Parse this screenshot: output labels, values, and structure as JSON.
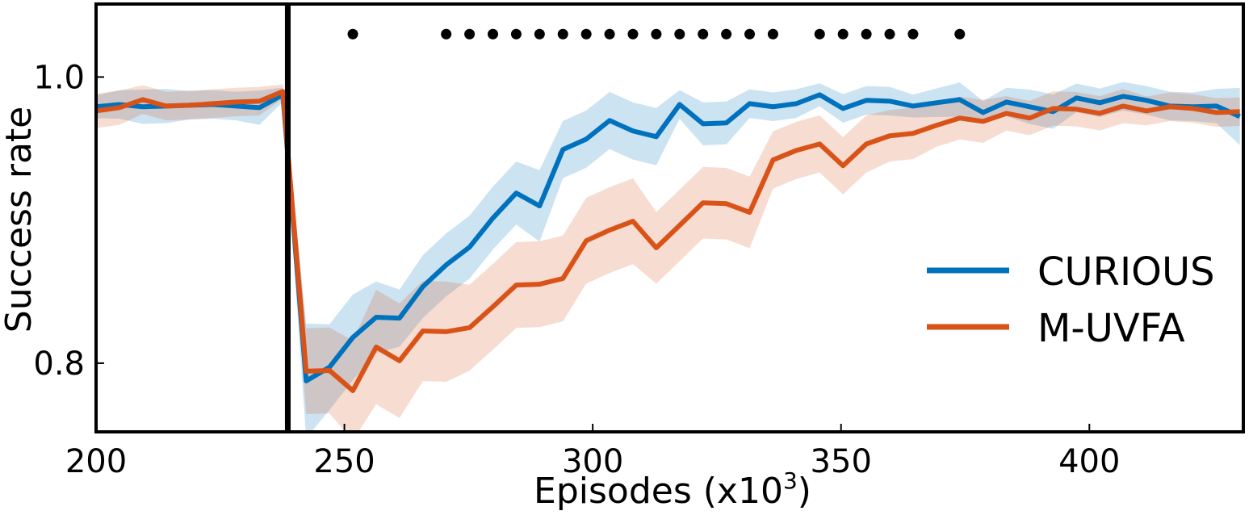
{
  "chart_data": {
    "type": "line",
    "xlabel": "Episodes (x10",
    "xlabel_sup": "3",
    "xlabel_close": ")",
    "ylabel": "Success rate",
    "xlim": [
      200,
      431
    ],
    "ylim": [
      0.752,
      1.051
    ],
    "xticks": [
      200,
      250,
      300,
      350,
      400
    ],
    "xtick_labels": [
      "200",
      "250",
      "300",
      "350",
      "400"
    ],
    "yticks": [
      0.8,
      1.0
    ],
    "ytick_labels": [
      "0.8",
      "1.0"
    ],
    "grid": false,
    "legend_placement": "lower-right",
    "vertical_marker_x": 238.6,
    "x": [
      200,
      204.7,
      209.4,
      214.1,
      218.8,
      223.5,
      228.2,
      232.9,
      237.6,
      242.3,
      247,
      251.7,
      256.4,
      261.1,
      265.8,
      270.5,
      275.2,
      279.9,
      284.6,
      289.3,
      294,
      298.7,
      303.4,
      308.1,
      312.8,
      317.5,
      322.2,
      326.9,
      331.6,
      336.3,
      341,
      345.7,
      350.4,
      355.1,
      359.8,
      364.5,
      369.2,
      373.9,
      378.6,
      383.3,
      388,
      392.7,
      397.4,
      402.1,
      406.8,
      411.5,
      416.2,
      420.9,
      425.6,
      430.3
    ],
    "series": [
      {
        "name": "CURIOUS",
        "color": "#0072BD",
        "values": [
          0.9792,
          0.9808,
          0.9792,
          0.9797,
          0.9803,
          0.9808,
          0.9797,
          0.9786,
          0.9876,
          0.7876,
          0.7972,
          0.818,
          0.8321,
          0.8315,
          0.8535,
          0.8687,
          0.8811,
          0.9014,
          0.9189,
          0.9099,
          0.9493,
          0.9566,
          0.9696,
          0.9623,
          0.9583,
          0.9808,
          0.9673,
          0.9679,
          0.9814,
          0.9792,
          0.9814,
          0.9876,
          0.978,
          0.9837,
          0.9831,
          0.9797,
          0.982,
          0.9842,
          0.9752,
          0.9825,
          0.9792,
          0.9758,
          0.9854,
          0.982,
          0.9865,
          0.9837,
          0.9797,
          0.9792,
          0.9797,
          0.9724
        ],
        "std": [
          0.008,
          0.01,
          0.012,
          0.012,
          0.01,
          0.01,
          0.01,
          0.012,
          0.005,
          0.04,
          0.03,
          0.03,
          0.025,
          0.02,
          0.022,
          0.022,
          0.022,
          0.022,
          0.022,
          0.025,
          0.02,
          0.02,
          0.02,
          0.02,
          0.02,
          0.01,
          0.015,
          0.015,
          0.01,
          0.01,
          0.01,
          0.008,
          0.01,
          0.01,
          0.01,
          0.008,
          0.01,
          0.012,
          0.008,
          0.01,
          0.012,
          0.012,
          0.01,
          0.01,
          0.01,
          0.01,
          0.01,
          0.01,
          0.012,
          0.02
        ]
      },
      {
        "name": "M-UVFA",
        "color": "#D95319",
        "values": [
          0.9763,
          0.9786,
          0.9842,
          0.9797,
          0.9803,
          0.9814,
          0.9825,
          0.9831,
          0.9899,
          0.7944,
          0.7949,
          0.7808,
          0.8113,
          0.8017,
          0.8225,
          0.822,
          0.8248,
          0.8394,
          0.8546,
          0.8552,
          0.8592,
          0.8856,
          0.893,
          0.8992,
          0.8806,
          0.8963,
          0.9121,
          0.9115,
          0.9054,
          0.942,
          0.9487,
          0.9532,
          0.938,
          0.9532,
          0.9589,
          0.9606,
          0.9662,
          0.9713,
          0.969,
          0.9746,
          0.9713,
          0.978,
          0.9775,
          0.9746,
          0.9797,
          0.9763,
          0.9792,
          0.978,
          0.9752,
          0.9758
        ],
        "std": [
          0.012,
          0.012,
          0.01,
          0.01,
          0.01,
          0.01,
          0.01,
          0.01,
          0.005,
          0.03,
          0.03,
          0.035,
          0.04,
          0.04,
          0.035,
          0.035,
          0.03,
          0.03,
          0.03,
          0.03,
          0.03,
          0.03,
          0.03,
          0.03,
          0.025,
          0.025,
          0.025,
          0.025,
          0.025,
          0.02,
          0.02,
          0.02,
          0.02,
          0.02,
          0.018,
          0.018,
          0.015,
          0.015,
          0.015,
          0.012,
          0.012,
          0.012,
          0.012,
          0.012,
          0.012,
          0.01,
          0.01,
          0.01,
          0.01,
          0.01
        ]
      }
    ],
    "significance_markers": {
      "y": 1.03,
      "x": [
        251.7,
        270.5,
        275.2,
        279.9,
        284.6,
        289.3,
        294,
        298.7,
        303.4,
        308.1,
        312.8,
        317.5,
        322.2,
        326.9,
        331.6,
        336.3,
        345.7,
        350.4,
        355.1,
        359.8,
        364.5,
        373.9
      ]
    }
  }
}
